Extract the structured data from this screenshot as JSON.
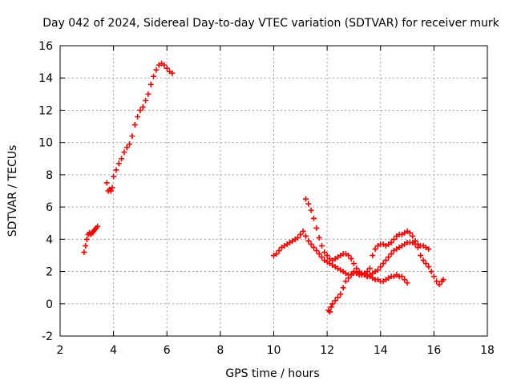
{
  "chart_data": {
    "type": "scatter",
    "title": "Day 042 of 2024, Sidereal Day-to-day VTEC variation (SDTVAR) for receiver murk",
    "xlabel": "GPS time / hours",
    "ylabel": "SDTVAR / TECUs",
    "xlim": [
      2,
      18
    ],
    "ylim": [
      -2,
      16
    ],
    "xticks": [
      "2",
      "4",
      "6",
      "8",
      "10",
      "12",
      "14",
      "16",
      "18"
    ],
    "yticks": [
      "-2",
      "0",
      "2",
      "4",
      "6",
      "8",
      "10",
      "12",
      "14",
      "16"
    ],
    "grid": true,
    "marker": "plus",
    "color": "#ff0000",
    "series": [
      {
        "x": [
          2.9,
          2.95,
          3.0,
          3.05,
          3.1,
          3.15,
          3.2,
          3.25,
          3.3,
          3.35,
          3.4
        ],
        "y": [
          3.2,
          3.6,
          4.0,
          4.3,
          4.4,
          4.3,
          4.4,
          4.5,
          4.6,
          4.7,
          4.8
        ]
      },
      {
        "x": [
          3.75,
          3.8,
          3.85,
          3.9,
          3.95,
          4.0,
          4.1,
          4.2,
          4.3,
          4.4,
          4.5,
          4.6,
          4.7,
          4.8,
          4.9,
          5.0,
          5.1,
          5.2,
          5.3,
          5.4,
          5.5,
          5.6,
          5.7,
          5.8,
          5.9,
          6.0,
          6.1,
          6.2
        ],
        "y": [
          7.5,
          7.0,
          7.1,
          7.0,
          7.2,
          7.9,
          8.3,
          8.7,
          9.0,
          9.4,
          9.7,
          9.9,
          10.4,
          11.1,
          11.6,
          12.0,
          12.2,
          12.6,
          13.0,
          13.6,
          14.1,
          14.5,
          14.8,
          14.9,
          14.8,
          14.6,
          14.4,
          14.3
        ]
      },
      {
        "x": [
          10.0,
          10.1,
          10.2,
          10.3,
          10.4,
          10.5,
          10.6,
          10.7,
          10.8,
          10.9,
          11.0,
          11.1,
          11.2,
          11.3,
          11.4,
          11.5,
          11.6,
          11.7,
          11.8,
          11.9,
          12.0,
          12.1,
          12.2,
          12.3,
          12.4,
          12.5,
          12.6,
          12.7,
          12.8,
          12.9,
          13.0,
          13.1,
          13.2,
          13.3,
          13.4,
          13.5,
          13.6,
          13.7,
          13.8,
          13.9,
          14.0,
          14.1,
          14.2,
          14.3,
          14.4,
          14.5,
          14.6,
          14.7,
          14.8,
          14.9,
          15.0,
          15.1,
          15.2,
          15.3,
          15.4,
          15.5,
          15.6,
          15.7,
          15.8
        ],
        "y": [
          3.0,
          3.1,
          3.3,
          3.5,
          3.6,
          3.7,
          3.8,
          3.9,
          4.0,
          4.1,
          4.3,
          4.5,
          4.2,
          3.9,
          3.7,
          3.5,
          3.3,
          3.1,
          2.9,
          2.7,
          2.6,
          2.5,
          2.4,
          2.3,
          2.2,
          2.1,
          2.0,
          1.9,
          1.8,
          1.8,
          1.9,
          1.9,
          1.8,
          1.8,
          1.8,
          1.7,
          1.8,
          1.9,
          2.0,
          2.1,
          2.3,
          2.5,
          2.7,
          2.9,
          3.1,
          3.3,
          3.4,
          3.5,
          3.6,
          3.7,
          3.8,
          3.8,
          3.8,
          3.7,
          3.7,
          3.6,
          3.6,
          3.5,
          3.4
        ]
      },
      {
        "x": [
          11.2,
          11.3,
          11.4,
          11.5,
          11.6,
          11.7,
          11.8,
          11.9,
          12.0,
          12.1,
          12.2,
          12.3,
          12.4,
          12.5,
          12.6,
          12.7,
          12.8,
          12.9,
          13.0,
          13.1,
          13.2,
          13.3,
          13.4,
          13.5,
          13.6,
          13.7,
          13.8,
          13.9,
          14.0,
          14.1,
          14.2,
          14.3,
          14.4,
          14.5,
          14.6,
          14.7,
          14.8,
          14.9,
          15.0
        ],
        "y": [
          6.5,
          6.2,
          5.8,
          5.3,
          4.7,
          4.1,
          3.6,
          3.2,
          3.0,
          2.8,
          2.7,
          2.8,
          2.9,
          3.0,
          3.1,
          3.1,
          3.0,
          2.8,
          2.5,
          2.2,
          2.0,
          1.9,
          1.8,
          1.7,
          1.7,
          1.6,
          1.5,
          1.5,
          1.4,
          1.4,
          1.5,
          1.6,
          1.7,
          1.7,
          1.8,
          1.7,
          1.7,
          1.5,
          1.3
        ]
      },
      {
        "x": [
          12.05,
          12.1,
          12.15,
          12.2,
          12.3,
          12.4,
          12.5,
          12.6,
          12.7,
          12.8,
          12.9,
          13.0,
          13.1,
          13.2,
          13.3,
          13.4,
          13.5,
          13.6,
          13.7,
          13.8,
          13.9,
          14.0,
          14.1,
          14.2,
          14.3,
          14.4,
          14.5,
          14.6,
          14.7,
          14.8,
          14.9,
          15.0,
          15.1,
          15.2,
          15.3,
          15.4,
          15.5,
          15.6,
          15.7,
          15.8,
          15.9,
          16.0,
          16.1,
          16.2,
          16.3,
          16.35
        ],
        "y": [
          -0.4,
          -0.5,
          -0.2,
          0.0,
          0.2,
          0.4,
          0.6,
          1.0,
          1.4,
          1.6,
          1.8,
          2.0,
          2.0,
          1.9,
          1.8,
          1.9,
          2.0,
          2.2,
          3.0,
          3.4,
          3.6,
          3.7,
          3.7,
          3.6,
          3.7,
          3.8,
          4.0,
          4.2,
          4.3,
          4.3,
          4.4,
          4.5,
          4.4,
          4.2,
          3.9,
          3.5,
          3.0,
          2.7,
          2.5,
          2.3,
          2.0,
          1.7,
          1.4,
          1.2,
          1.4,
          1.5
        ]
      }
    ]
  }
}
